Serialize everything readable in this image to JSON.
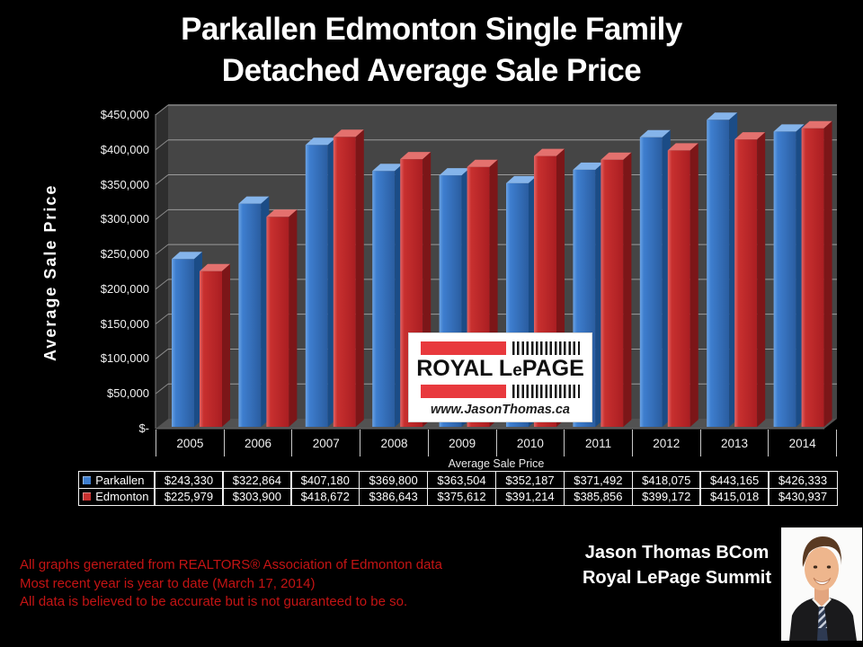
{
  "title": {
    "line1": "Parkallen Edmonton Single Family",
    "line2": "Detached Average Sale Price"
  },
  "chart_data": {
    "type": "bar",
    "title": "Parkallen Edmonton Single Family Detached Average Sale Price",
    "categories": [
      "2005",
      "2006",
      "2007",
      "2008",
      "2009",
      "2010",
      "2011",
      "2012",
      "2013",
      "2014"
    ],
    "series": [
      {
        "name": "Parkallen",
        "values": [
          243330,
          322864,
          407180,
          369800,
          363504,
          352187,
          371492,
          418075,
          443165,
          426333
        ],
        "color": "#3e7ecf",
        "color_light": "#6ca3e3",
        "color_dark": "#2a5da0",
        "color_top": "#85b4ea",
        "color_side": "#1b4c86"
      },
      {
        "name": "Edmonton",
        "values": [
          225979,
          303900,
          418672,
          386643,
          375612,
          391214,
          385856,
          399172,
          415018,
          430937
        ],
        "color": "#c8302f",
        "color_light": "#e26464",
        "color_dark": "#aa1e22",
        "color_top": "#e4716e",
        "color_side": "#7c1618"
      }
    ],
    "xlabel": "Average Sale Price",
    "ylabel": "Average Sale Price",
    "ylim": [
      0,
      450000
    ],
    "ytick_step": 50000,
    "ytick_labels": [
      "$-",
      "$50,000",
      "$100,000",
      "$150,000",
      "$200,000",
      "$250,000",
      "$300,000",
      "$350,000",
      "$400,000",
      "$450,000"
    ],
    "grid": true,
    "legend_position": "table-left",
    "plot_bg": "#454545",
    "gridline_color": "#9b9b9b"
  },
  "table": {
    "rows": [
      {
        "label": "Parkallen",
        "color": "#3e7ecf",
        "cells": [
          "$243,330",
          "$322,864",
          "$407,180",
          "$369,800",
          "$363,504",
          "$352,187",
          "$371,492",
          "$418,075",
          "$443,165",
          "$426,333"
        ]
      },
      {
        "label": "Edmonton",
        "color": "#c8302f",
        "cells": [
          "$225,979",
          "$303,900",
          "$418,672",
          "$386,643",
          "$375,612",
          "$391,214",
          "$385,856",
          "$399,172",
          "$415,018",
          "$430,937"
        ]
      }
    ]
  },
  "logo": {
    "brand_prefix": "ROYAL L",
    "brand_small_e": "e",
    "brand_suffix": "PAGE",
    "website": "www.JasonThomas.ca",
    "red": "#e8393d"
  },
  "footer": {
    "disclaimer_lines": [
      "All graphs generated from REALTORS® Association of Edmonton data",
      "Most recent year is year to date (March 17, 2014)",
      "All data is believed to be accurate but is not guaranteed to be so."
    ],
    "agent_line1": "Jason Thomas BCom",
    "agent_line2": "Royal LePage Summit",
    "disclaimer_color": "#c41414"
  }
}
